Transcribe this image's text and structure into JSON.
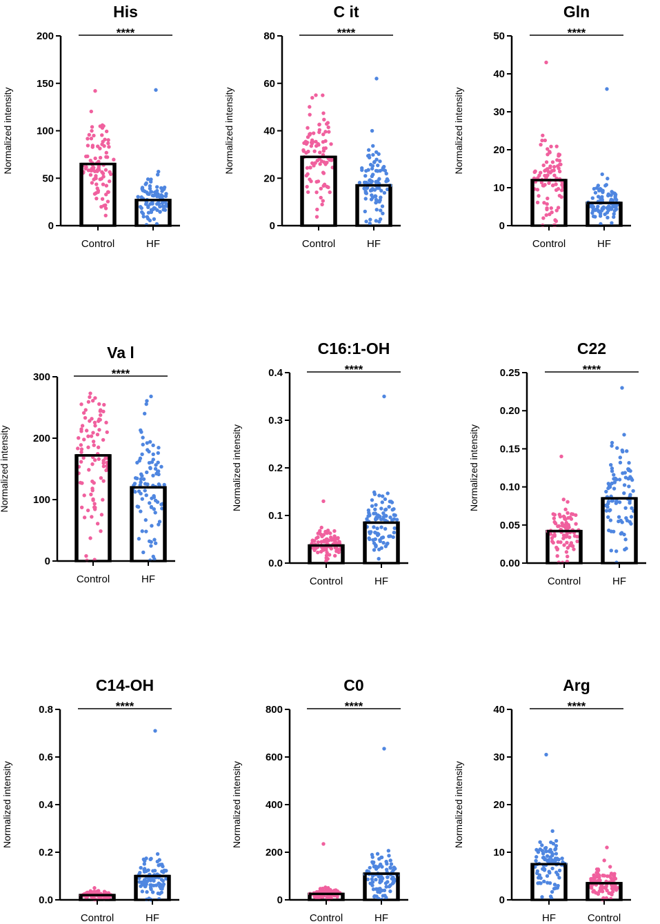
{
  "colors": {
    "Control": "#f0609e",
    "HF": "#4f86e0",
    "axis": "#000000",
    "bar_fill": "#ffffff"
  },
  "chart_data": [
    {
      "type": "bar",
      "title": "His",
      "ylabel": "Normalized intensity",
      "ylim": [
        0,
        200
      ],
      "yticks": [
        "0",
        "50",
        "100",
        "150",
        "200"
      ],
      "categories": [
        "Control",
        "HF"
      ],
      "values": [
        65,
        27
      ],
      "point_max": [
        142,
        143
      ],
      "significance": "****"
    },
    {
      "type": "bar",
      "title": "C it",
      "ylabel": "Normalized intensity",
      "ylim": [
        0,
        80
      ],
      "yticks": [
        "0",
        "20",
        "40",
        "60",
        "80"
      ],
      "categories": [
        "Control",
        "HF"
      ],
      "values": [
        29,
        17
      ],
      "point_max": [
        55,
        62
      ],
      "significance": "****"
    },
    {
      "type": "bar",
      "title": "Gln",
      "ylabel": "Normalized intensity",
      "ylim": [
        0,
        50
      ],
      "yticks": [
        "0",
        "10",
        "20",
        "30",
        "40",
        "50"
      ],
      "categories": [
        "Control",
        "HF"
      ],
      "values": [
        12,
        6
      ],
      "point_max": [
        43,
        36
      ],
      "significance": "****"
    },
    {
      "type": "bar",
      "title": "Va l",
      "ylabel": "Normalized intensity",
      "ylim": [
        0,
        300
      ],
      "yticks": [
        "0",
        "100",
        "200",
        "300"
      ],
      "categories": [
        "Control",
        "HF"
      ],
      "values": [
        172,
        120
      ],
      "point_max": [
        273,
        268
      ],
      "significance": "****"
    },
    {
      "type": "bar",
      "title": "C16:1-OH",
      "ylabel": "Normalized intensity",
      "ylim": [
        0,
        0.4
      ],
      "yticks": [
        "0.0",
        "0.1",
        "0.2",
        "0.3",
        "0.4"
      ],
      "categories": [
        "Control",
        "HF"
      ],
      "values": [
        0.037,
        0.085
      ],
      "point_max": [
        0.13,
        0.35
      ],
      "significance": "****"
    },
    {
      "type": "bar",
      "title": "C22",
      "ylabel": "Normalized intensity",
      "ylim": [
        0,
        0.25
      ],
      "yticks": [
        "0.00",
        "0.05",
        "0.10",
        "0.15",
        "0.20",
        "0.25"
      ],
      "categories": [
        "Control",
        "HF"
      ],
      "values": [
        0.042,
        0.085
      ],
      "point_max": [
        0.14,
        0.23
      ],
      "significance": "****"
    },
    {
      "type": "bar",
      "title": "C14-OH",
      "ylabel": "Normalized intensity",
      "ylim": [
        0,
        0.8
      ],
      "yticks": [
        "0.0",
        "0.2",
        "0.4",
        "0.6",
        "0.8"
      ],
      "categories": [
        "Control",
        "HF"
      ],
      "values": [
        0.02,
        0.1
      ],
      "point_max": [
        0.05,
        0.71
      ],
      "significance": "****"
    },
    {
      "type": "bar",
      "title": "C0",
      "ylabel": "Normalized intensity",
      "ylim": [
        0,
        800
      ],
      "yticks": [
        "0",
        "200",
        "400",
        "600",
        "800"
      ],
      "categories": [
        "Control",
        "HF"
      ],
      "values": [
        25,
        110
      ],
      "point_max": [
        235,
        635
      ],
      "significance": "****"
    },
    {
      "type": "bar",
      "title": "Arg",
      "ylabel": "Normalized intensity",
      "ylim": [
        0,
        40
      ],
      "yticks": [
        "0",
        "10",
        "20",
        "30",
        "40"
      ],
      "categories": [
        "HF",
        "Control"
      ],
      "values": [
        7.5,
        3.5
      ],
      "point_max": [
        30.5,
        11
      ],
      "significance": "****"
    }
  ]
}
